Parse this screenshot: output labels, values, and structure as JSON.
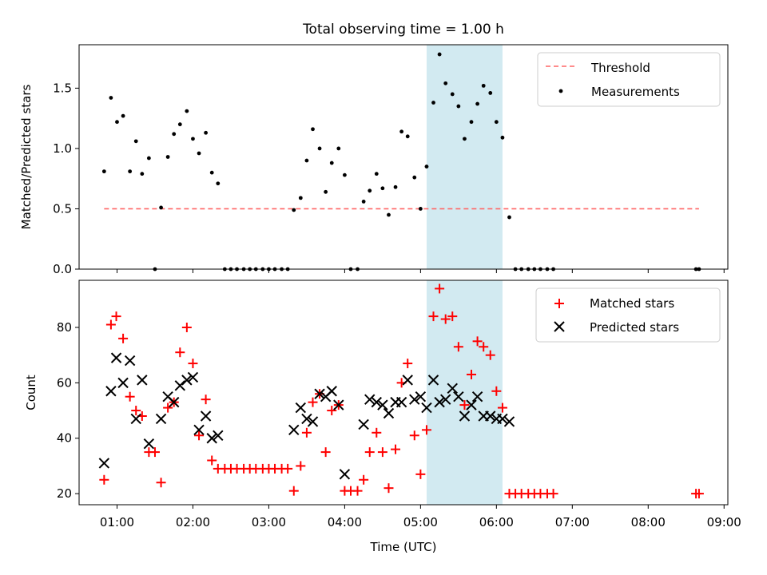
{
  "figure": {
    "title": "Total observing time = 1.00 h",
    "xlabel": "Time (UTC)",
    "x_ticks": [
      "01:00",
      "02:00",
      "03:00",
      "04:00",
      "05:00",
      "06:00",
      "07:00",
      "08:00",
      "09:00"
    ],
    "x_tick_hours": [
      1,
      2,
      3,
      4,
      5,
      6,
      7,
      8,
      9
    ],
    "xlim_hours": [
      0.5,
      9.05
    ],
    "highlight_hours": [
      5.08,
      6.08
    ],
    "highlight_color": "#add8e6"
  },
  "chart_data": [
    {
      "type": "scatter",
      "ylabel": "Matched/Predicted stars",
      "ylim": [
        0,
        1.86
      ],
      "y_ticks": [
        "0.0",
        "0.5",
        "1.0",
        "1.5"
      ],
      "y_tick_values": [
        0,
        0.5,
        1.0,
        1.5
      ],
      "legend": {
        "placement": "top-right",
        "entries": [
          "Threshold",
          "Measurements"
        ]
      },
      "threshold": {
        "name": "Threshold",
        "y": 0.5,
        "x_range": [
          0.83,
          8.67
        ],
        "color": "#ff6666",
        "style": "dashed"
      },
      "measurements": {
        "name": "Measurements",
        "color": "#000000",
        "x": [
          0.83,
          0.92,
          1.0,
          1.08,
          1.17,
          1.25,
          1.33,
          1.42,
          1.5,
          1.58,
          1.67,
          1.75,
          1.83,
          1.92,
          2.0,
          2.08,
          2.17,
          2.25,
          2.33,
          2.42,
          2.5,
          2.58,
          2.67,
          2.75,
          2.83,
          2.92,
          3.0,
          3.08,
          3.17,
          3.25,
          3.33,
          3.42,
          3.5,
          3.58,
          3.67,
          3.75,
          3.83,
          3.92,
          4.0,
          4.08,
          4.17,
          4.25,
          4.33,
          4.42,
          4.5,
          4.58,
          4.67,
          4.75,
          4.83,
          4.92,
          5.0,
          5.08,
          5.17,
          5.25,
          5.33,
          5.42,
          5.5,
          5.58,
          5.67,
          5.75,
          5.83,
          5.92,
          6.0,
          6.08,
          6.17,
          6.25,
          6.33,
          6.42,
          6.5,
          6.58,
          6.67,
          6.75,
          8.63,
          8.67
        ],
        "y": [
          0.81,
          1.42,
          1.22,
          1.27,
          0.81,
          1.06,
          0.79,
          0.92,
          0.0,
          0.51,
          0.93,
          1.12,
          1.2,
          1.31,
          1.08,
          0.96,
          1.13,
          0.8,
          0.71,
          0.0,
          0.0,
          0.0,
          0.0,
          0.0,
          0.0,
          0.0,
          0.0,
          0.0,
          0.0,
          0.0,
          0.49,
          0.59,
          0.9,
          1.16,
          1.0,
          0.64,
          0.88,
          1.0,
          0.78,
          0.0,
          0.0,
          0.56,
          0.65,
          0.79,
          0.67,
          0.45,
          0.68,
          1.14,
          1.1,
          0.76,
          0.5,
          0.85,
          1.38,
          1.78,
          1.54,
          1.45,
          1.35,
          1.08,
          1.22,
          1.37,
          1.52,
          1.46,
          1.22,
          1.09,
          0.43,
          0.0,
          0.0,
          0.0,
          0.0,
          0.0,
          0.0,
          0.0,
          0.0,
          0.0
        ]
      }
    },
    {
      "type": "scatter",
      "ylabel": "Count",
      "ylim": [
        16,
        97
      ],
      "y_ticks": [
        "20",
        "40",
        "60",
        "80"
      ],
      "y_tick_values": [
        20,
        40,
        60,
        80
      ],
      "legend": {
        "placement": "top-right",
        "entries": [
          "Matched stars",
          "Predicted stars"
        ]
      },
      "series": [
        {
          "name": "Matched stars",
          "marker": "+",
          "color": "#ff0000",
          "x": [
            0.83,
            0.92,
            0.99,
            1.08,
            1.17,
            1.25,
            1.33,
            1.42,
            1.5,
            1.58,
            1.67,
            1.75,
            1.83,
            1.92,
            2.0,
            2.08,
            2.17,
            2.25,
            2.33,
            2.42,
            2.5,
            2.58,
            2.67,
            2.75,
            2.83,
            2.92,
            3.0,
            3.08,
            3.17,
            3.25,
            3.33,
            3.42,
            3.5,
            3.58,
            3.67,
            3.75,
            3.83,
            3.92,
            4.0,
            4.08,
            4.17,
            4.25,
            4.33,
            4.42,
            4.5,
            4.58,
            4.67,
            4.75,
            4.83,
            4.92,
            5.0,
            5.08,
            5.17,
            5.25,
            5.33,
            5.42,
            5.5,
            5.58,
            5.67,
            5.75,
            5.83,
            5.92,
            6.0,
            6.08,
            6.17,
            6.25,
            6.33,
            6.42,
            6.5,
            6.58,
            6.67,
            6.75,
            8.63,
            8.67
          ],
          "y": [
            25,
            81,
            84,
            76,
            55,
            50,
            48,
            35,
            35,
            24,
            51,
            53,
            71,
            80,
            67,
            41,
            54,
            32,
            29,
            29,
            29,
            29,
            29,
            29,
            29,
            29,
            29,
            29,
            29,
            29,
            21,
            30,
            42,
            53,
            56,
            35,
            50,
            52,
            21,
            21,
            21,
            25,
            35,
            42,
            35,
            22,
            36,
            60,
            67,
            41,
            27,
            43,
            84,
            94,
            83,
            84,
            73,
            52,
            63,
            75,
            73,
            70,
            57,
            51,
            20,
            20,
            20,
            20,
            20,
            20,
            20,
            20,
            20,
            20
          ]
        },
        {
          "name": "Predicted stars",
          "marker": "x",
          "color": "#000000",
          "x": [
            0.83,
            0.92,
            0.99,
            1.08,
            1.17,
            1.25,
            1.33,
            1.42,
            1.58,
            1.67,
            1.75,
            1.83,
            1.92,
            2.0,
            2.08,
            2.17,
            2.25,
            2.33,
            3.33,
            3.42,
            3.5,
            3.58,
            3.67,
            3.75,
            3.83,
            3.92,
            4.0,
            4.25,
            4.33,
            4.42,
            4.5,
            4.58,
            4.67,
            4.75,
            4.83,
            4.92,
            5.0,
            5.08,
            5.17,
            5.25,
            5.33,
            5.42,
            5.5,
            5.58,
            5.67,
            5.75,
            5.83,
            5.92,
            6.0,
            6.08,
            6.17
          ],
          "y": [
            31,
            57,
            69,
            60,
            68,
            47,
            61,
            38,
            47,
            55,
            53,
            59,
            61,
            62,
            43,
            48,
            40,
            41,
            43,
            51,
            47,
            46,
            56,
            55,
            57,
            52,
            27,
            45,
            54,
            53,
            52,
            49,
            53,
            53,
            61,
            54,
            55,
            51,
            61,
            53,
            54,
            58,
            55,
            48,
            52,
            55,
            48,
            48,
            47,
            47,
            46
          ]
        }
      ]
    }
  ]
}
